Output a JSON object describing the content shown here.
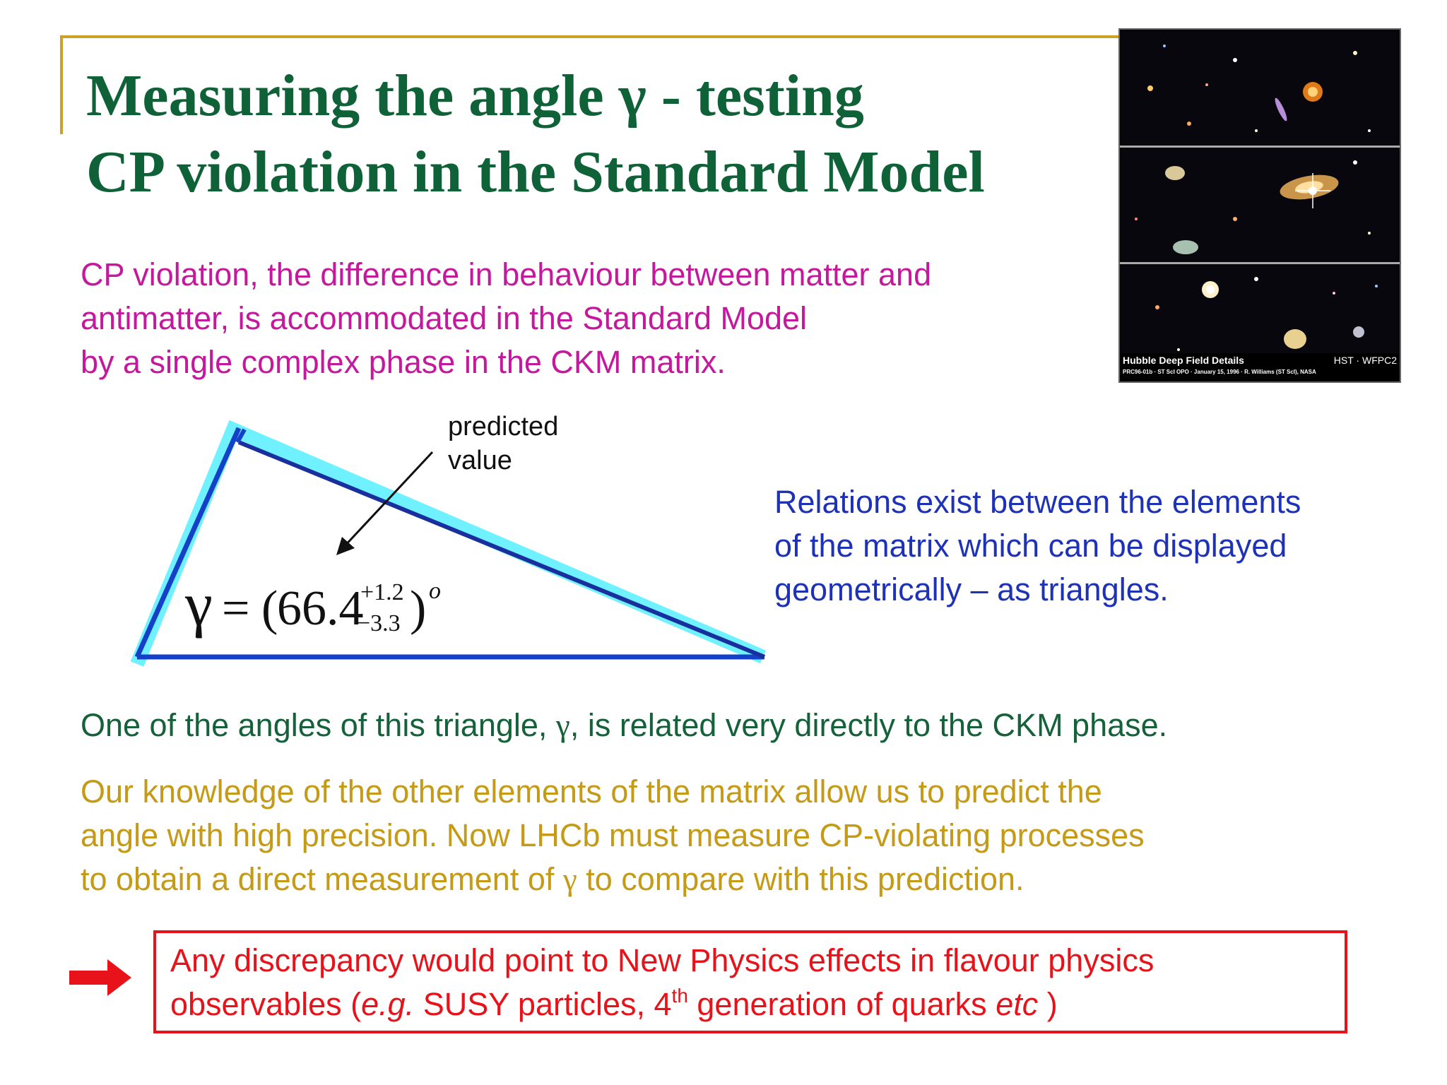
{
  "title": {
    "line1": "Measuring the angle γ - testing",
    "line2": "CP violation in the Standard Model"
  },
  "photo": {
    "caption_title": "Hubble Deep Field Details",
    "caption_instrument": "HST · WFPC2",
    "caption_credit": "PRC96-01b · ST ScI OPO · January 15, 1996 · R. Williams (ST ScI), NASA"
  },
  "intro": {
    "line1": "CP violation, the difference in behaviour between matter and",
    "line2": "antimatter, is accommodated in the Standard Model",
    "line3": "by a single complex phase in the CKM matrix."
  },
  "triangle": {
    "annotation_line1": "predicted",
    "annotation_line2": "value",
    "formula_symbol": "γ",
    "formula_equals": "=",
    "formula_open": "(",
    "formula_value": "66.4",
    "formula_upper": "+1.2",
    "formula_lower": "−3.3",
    "formula_close": ")",
    "formula_unit": "o"
  },
  "relations": {
    "line1": "Relations exist between the elements",
    "line2": "of the matrix which can be displayed",
    "line3": "geometrically – as triangles."
  },
  "angle_text": {
    "before": "One of the angles of this triangle, ",
    "symbol": "γ",
    "after": ", is related very directly to the CKM phase."
  },
  "knowledge": {
    "line1": "Our knowledge of the other elements of the matrix allow us to predict the",
    "line2": "angle with high precision. Now LHCb must measure CP-violating processes",
    "line3_before": "to obtain a direct measurement of ",
    "line3_symbol": "γ",
    "line3_after": " to compare with this prediction."
  },
  "discrepancy": {
    "line1": "Any discrepancy would point to New Physics effects in flavour physics",
    "line2_a": "observables (",
    "line2_eg": "e.g.",
    "line2_b": " SUSY particles, 4",
    "line2_sup": "th",
    "line2_c": " generation of quarks ",
    "line2_etc": "etc",
    "line2_d": " )"
  },
  "colors": {
    "title": "#0f6138",
    "intro": "#c4199c",
    "relations": "#1e32b8",
    "angle_text": "#15613a",
    "knowledge": "#c49a17",
    "discrepancy": "#e8121a",
    "frame": "#c9a227"
  }
}
